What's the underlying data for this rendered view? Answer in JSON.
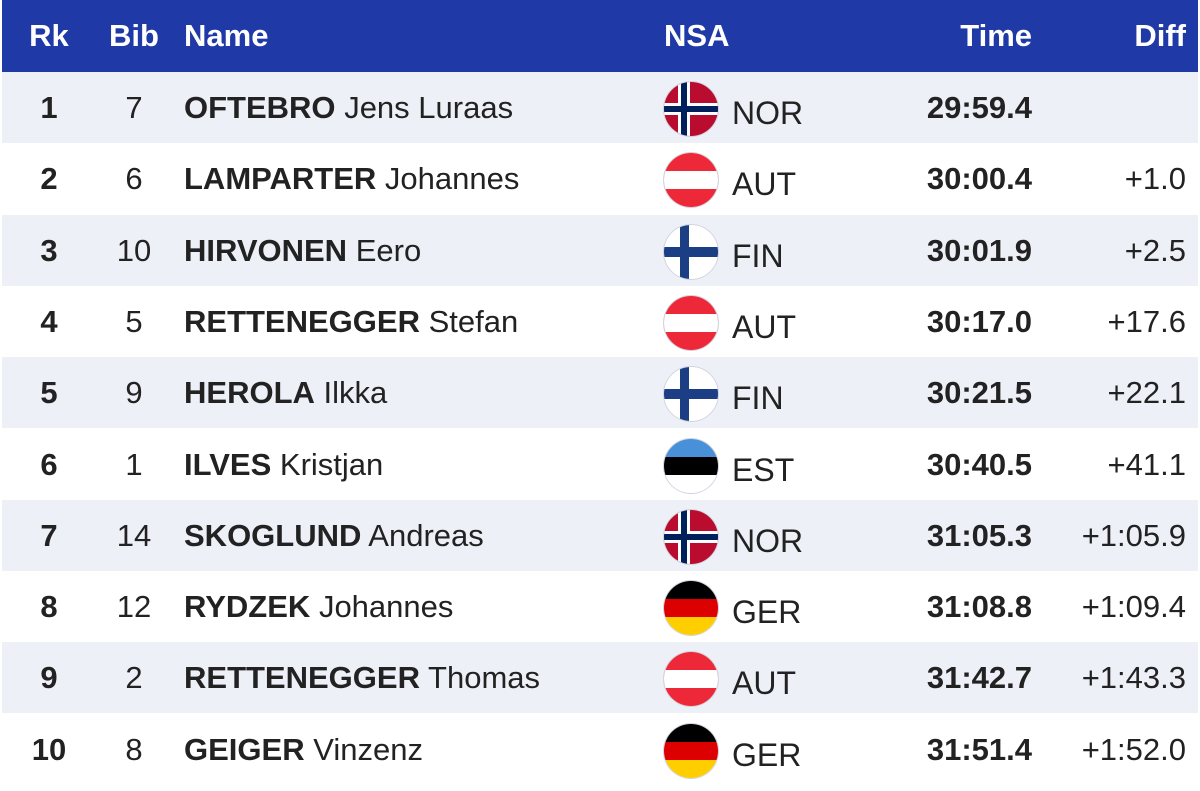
{
  "columns": {
    "rk": "Rk",
    "bib": "Bib",
    "name": "Name",
    "nsa": "NSA",
    "time": "Time",
    "diff": "Diff"
  },
  "colors": {
    "header_bg": "#1f3aa6",
    "row_stripe": "#eef0f8",
    "text": "#222222"
  },
  "rows": [
    {
      "rk": "1",
      "bib": "7",
      "last": "OFTEBRO",
      "first": "Jens Luraas",
      "nsa": "NOR",
      "flag": "norway-flag-icon",
      "time": "29:59.4",
      "diff": ""
    },
    {
      "rk": "2",
      "bib": "6",
      "last": "LAMPARTER",
      "first": "Johannes",
      "nsa": "AUT",
      "flag": "austria-flag-icon",
      "time": "30:00.4",
      "diff": "+1.0"
    },
    {
      "rk": "3",
      "bib": "10",
      "last": "HIRVONEN",
      "first": "Eero",
      "nsa": "FIN",
      "flag": "finland-flag-icon",
      "time": "30:01.9",
      "diff": "+2.5"
    },
    {
      "rk": "4",
      "bib": "5",
      "last": "RETTENEGGER",
      "first": "Stefan",
      "nsa": "AUT",
      "flag": "austria-flag-icon",
      "time": "30:17.0",
      "diff": "+17.6"
    },
    {
      "rk": "5",
      "bib": "9",
      "last": "HEROLA",
      "first": "Ilkka",
      "nsa": "FIN",
      "flag": "finland-flag-icon",
      "time": "30:21.5",
      "diff": "+22.1"
    },
    {
      "rk": "6",
      "bib": "1",
      "last": "ILVES",
      "first": "Kristjan",
      "nsa": "EST",
      "flag": "estonia-flag-icon",
      "time": "30:40.5",
      "diff": "+41.1"
    },
    {
      "rk": "7",
      "bib": "14",
      "last": "SKOGLUND",
      "first": "Andreas",
      "nsa": "NOR",
      "flag": "norway-flag-icon",
      "time": "31:05.3",
      "diff": "+1:05.9"
    },
    {
      "rk": "8",
      "bib": "12",
      "last": "RYDZEK",
      "first": "Johannes",
      "nsa": "GER",
      "flag": "germany-flag-icon",
      "time": "31:08.8",
      "diff": "+1:09.4"
    },
    {
      "rk": "9",
      "bib": "2",
      "last": "RETTENEGGER",
      "first": "Thomas",
      "nsa": "AUT",
      "flag": "austria-flag-icon",
      "time": "31:42.7",
      "diff": "+1:43.3"
    },
    {
      "rk": "10",
      "bib": "8",
      "last": "GEIGER",
      "first": "Vinzenz",
      "nsa": "GER",
      "flag": "germany-flag-icon",
      "time": "31:51.4",
      "diff": "+1:52.0"
    }
  ]
}
